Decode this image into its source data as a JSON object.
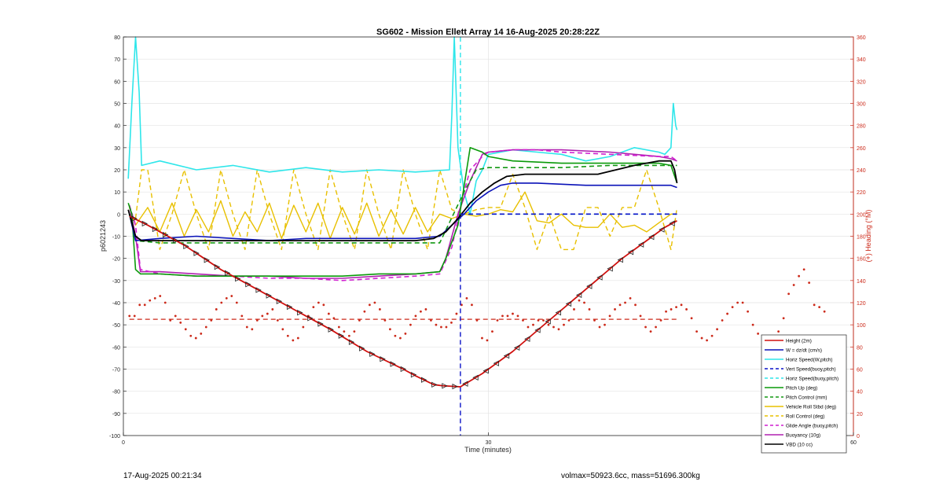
{
  "colors": {
    "height": "#d0100e",
    "w": "#0a12b8",
    "horiz": "#2ee6ea",
    "vert_dash": "#0a12c8",
    "pitch": "#0a9a0a",
    "pitch_ctrl": "#129812",
    "roll": "#e8c000",
    "glide": "#d11fd1",
    "buoy": "#b020b0",
    "vbd": "#000000",
    "heading": "#cc2a1a",
    "right_axis": "#cc2a1a"
  },
  "chart_data": {
    "type": "line",
    "title": "SG602 - Mission Ellett Array 14 16-Aug-2025 20:28:22Z",
    "xlabel": "Time (minutes)",
    "ylabel": "p6021243",
    "y2label": "(+) Heading (°M)",
    "xlim": [
      0,
      60
    ],
    "ylim": [
      -100,
      80
    ],
    "y2lim": [
      0,
      360
    ],
    "xticks": [
      0,
      30,
      60
    ],
    "yticks": [
      80,
      70,
      60,
      50,
      40,
      30,
      20,
      10,
      0,
      -10,
      -20,
      -30,
      -40,
      -50,
      -60,
      -70,
      -80,
      -90,
      -100
    ],
    "y2ticks": [
      360,
      340,
      320,
      300,
      280,
      260,
      240,
      220,
      200,
      180,
      160,
      140,
      120,
      100,
      80,
      60,
      40,
      20,
      0
    ],
    "grid": true,
    "legend_position": "bottom-right",
    "apogee_time": 27.7,
    "series": [
      {
        "key": "height",
        "name": "Height (2m)",
        "style": "solid",
        "x": [
          0.5,
          2,
          5,
          8,
          11,
          14,
          17,
          20,
          23,
          24,
          25.5,
          26.2,
          27.7,
          29.5,
          32,
          35,
          38,
          41,
          43,
          44.5,
          45.5
        ],
        "y": [
          -1,
          -5,
          -14,
          -25,
          -34,
          -43,
          -52,
          -62,
          -70,
          -73,
          -77,
          -77.5,
          -78,
          -72,
          -62,
          -48,
          -34,
          -20,
          -12,
          -6,
          -3
        ]
      },
      {
        "key": "w",
        "name": "W = dz/dt (cm/s)",
        "style": "solid",
        "x": [
          0.5,
          1,
          3,
          6,
          9,
          12,
          15,
          18,
          21,
          24,
          26,
          27,
          28,
          29,
          30,
          31,
          32,
          34,
          38,
          42,
          45,
          45.5
        ],
        "y": [
          0,
          -12,
          -11,
          -10,
          -11,
          -12,
          -11,
          -11,
          -11,
          -11,
          -10,
          -5,
          0,
          6,
          10,
          13,
          14,
          14,
          13,
          13,
          13,
          12
        ]
      },
      {
        "key": "horiz",
        "name": "Horiz Speed(W,pitch)",
        "style": "solid",
        "x": [
          0.4,
          0.7,
          1,
          1.3,
          1.5,
          3,
          6,
          9,
          12,
          15,
          18,
          21,
          24,
          26.8,
          27,
          27.2,
          27.5,
          28,
          28.5,
          29,
          29.5,
          30,
          32,
          34,
          36,
          38,
          40,
          42,
          44,
          44.5,
          45,
          45.2,
          45.4,
          45.5
        ],
        "y": [
          16,
          50,
          80,
          55,
          22,
          24,
          20,
          22,
          19,
          21,
          19,
          20,
          19,
          20,
          45,
          80,
          30,
          10,
          0,
          15,
          20,
          27,
          29,
          28,
          27,
          24,
          26,
          30,
          28,
          27,
          30,
          50,
          40,
          38
        ]
      },
      {
        "key": "vert",
        "name": "Vert Speed(buoy,pitch)",
        "style": "dashed",
        "x": [
          27.7,
          45.5
        ],
        "y": [
          0,
          0
        ]
      },
      {
        "key": "horiz_buoy",
        "name": "Horiz Speed(buoy,pitch)",
        "style": "dashed",
        "x": [
          27.7,
          45.5
        ],
        "y": [
          0,
          0
        ]
      },
      {
        "key": "pitch",
        "name": "Pitch Up (deg)",
        "style": "solid",
        "x": [
          0.4,
          0.7,
          1,
          1.4,
          3,
          6,
          9,
          12,
          15,
          18,
          21,
          24,
          26,
          26.5,
          27.5,
          28.5,
          29.5,
          30,
          32,
          36,
          40,
          44,
          45,
          45.5
        ],
        "y": [
          5,
          0,
          -25,
          -27,
          -27,
          -28,
          -28,
          -28,
          -28,
          -28,
          -27,
          -27,
          -26,
          -20,
          -5,
          30,
          28,
          26,
          24,
          23,
          23,
          23,
          22,
          14
        ]
      },
      {
        "key": "pitch_ctrl",
        "name": "Pitch Control (mm)",
        "style": "dashed",
        "x": [
          0.5,
          1,
          3,
          6,
          9,
          12,
          15,
          18,
          21,
          24,
          26,
          28,
          29,
          30,
          32,
          36,
          40,
          45.5
        ],
        "y": [
          0,
          -12,
          -13,
          -13,
          -13,
          -13,
          -13,
          -13,
          -13,
          -13,
          -13,
          10,
          20,
          21,
          21,
          21,
          22,
          22
        ]
      },
      {
        "key": "roll",
        "name": "Vehicle Roll Stbd (deg)",
        "style": "solid",
        "x": [
          0.5,
          1,
          2,
          3,
          4,
          5,
          6,
          7,
          8,
          9,
          10,
          11,
          12,
          13,
          14,
          15,
          16,
          17,
          18,
          19,
          20,
          21,
          22,
          23,
          24,
          25,
          26,
          27,
          28,
          29,
          30,
          31,
          32,
          33,
          34,
          35,
          36,
          37,
          38,
          39,
          40,
          41,
          42,
          43,
          44,
          45,
          45.5
        ],
        "y": [
          3,
          -5,
          3,
          -8,
          5,
          -10,
          2,
          -8,
          6,
          -10,
          1,
          -8,
          5,
          -11,
          4,
          -8,
          5,
          -11,
          3,
          -9,
          5,
          -10,
          2,
          -9,
          3,
          -8,
          0,
          -2,
          0,
          -1,
          0,
          2,
          1,
          10,
          -3,
          -4,
          0,
          -5,
          -6,
          -6,
          0,
          -6,
          -5,
          -8,
          -4,
          0,
          0
        ]
      },
      {
        "key": "roll_ctrl",
        "name": "Roll Control (deg)",
        "style": "dashed",
        "x": [
          0.5,
          1,
          1.5,
          2,
          3,
          4,
          5,
          6,
          7,
          8,
          9,
          10,
          11,
          12,
          13,
          14,
          15,
          16,
          17,
          18,
          19,
          20,
          21,
          22,
          23,
          24,
          25,
          26,
          27,
          28,
          29,
          30,
          31,
          32,
          33,
          34,
          35,
          36,
          37,
          38,
          39,
          40,
          41,
          42,
          43,
          44,
          45,
          45.5
        ],
        "y": [
          0,
          -2,
          20,
          20,
          -16,
          0,
          20,
          0,
          -16,
          20,
          0,
          -16,
          20,
          0,
          -16,
          20,
          0,
          -16,
          20,
          0,
          -16,
          20,
          0,
          -16,
          20,
          0,
          -16,
          20,
          2,
          0,
          2,
          3,
          3,
          18,
          3,
          -16,
          0,
          -16,
          -16,
          3,
          3,
          -10,
          3,
          3,
          20,
          3,
          -16,
          3
        ]
      },
      {
        "key": "glide",
        "name": "Glide Angle (buoy,pitch)",
        "style": "dashed",
        "x": [
          0.5,
          1,
          1.4,
          3,
          6,
          9,
          12,
          15,
          18,
          21,
          24,
          26,
          27,
          28,
          28.5,
          29.5,
          30,
          32,
          34,
          36,
          40,
          44,
          45,
          45.5
        ],
        "y": [
          4,
          -5,
          -25,
          -27,
          -28,
          -28,
          -29,
          -29,
          -30,
          -29,
          -28,
          -27,
          -15,
          10,
          20,
          26,
          28,
          29,
          29,
          28,
          27,
          26,
          26,
          24
        ]
      },
      {
        "key": "buoy",
        "name": "Buoyancy (10g)",
        "style": "solid",
        "x": [
          0.5,
          1,
          1.4,
          3,
          6,
          9,
          12,
          15,
          18,
          21,
          24,
          26,
          26.5,
          27.5,
          28.5,
          29.5,
          30,
          32,
          34,
          36,
          40,
          44,
          45,
          45.5
        ],
        "y": [
          4,
          -10,
          -26,
          -26,
          -27,
          -28,
          -28,
          -29,
          -29,
          -28,
          -27,
          -26,
          -20,
          0,
          15,
          27,
          28,
          29,
          29,
          29,
          28,
          26,
          25,
          24
        ]
      },
      {
        "key": "vbd",
        "name": "VBD (10 cc)",
        "style": "solid",
        "x": [
          0.4,
          1,
          1.5,
          3,
          6,
          9,
          12,
          15,
          18,
          21,
          24,
          25.5,
          26.5,
          27.5,
          28.5,
          29.5,
          30.5,
          31.5,
          33,
          36,
          39,
          42,
          44,
          45,
          45.3,
          45.5
        ],
        "y": [
          2,
          -10,
          -12,
          -12,
          -12,
          -12,
          -12,
          -12,
          -12,
          -12,
          -12,
          -11,
          -8,
          -2,
          5,
          10,
          14,
          17,
          18,
          18,
          18,
          22,
          24,
          24,
          20,
          14
        ]
      }
    ],
    "heading_mean_deg": 105,
    "heading_points": {
      "x_start": 0.5,
      "x_step": 0.42,
      "y": [
        108,
        108,
        118,
        118,
        122,
        124,
        126,
        120,
        104,
        108,
        102,
        96,
        90,
        88,
        92,
        98,
        104,
        114,
        120,
        124,
        126,
        120,
        108,
        98,
        96,
        104,
        108,
        110,
        114,
        104,
        96,
        90,
        86,
        88,
        98,
        108,
        116,
        120,
        118,
        110,
        106,
        98,
        94,
        90,
        94,
        104,
        112,
        118,
        120,
        114,
        104,
        96,
        90,
        88,
        92,
        100,
        108,
        112,
        114,
        104,
        100,
        98,
        98,
        102,
        110,
        118,
        124,
        118,
        104,
        88,
        86,
        94,
        104,
        108,
        108,
        110,
        108,
        104,
        98,
        100,
        104,
        104,
        100,
        98,
        96,
        100,
        104,
        114,
        122,
        120,
        114,
        104,
        98,
        100,
        108,
        114,
        118,
        120,
        124,
        118,
        108,
        98,
        94,
        98,
        104,
        112,
        114,
        116,
        118,
        114,
        106,
        94,
        88,
        86,
        90,
        96,
        104,
        110,
        116,
        120,
        120,
        112,
        100,
        92,
        86,
        84,
        86,
        94,
        106,
        128,
        136,
        144,
        150,
        138,
        118,
        116,
        112
      ]
    }
  },
  "footer": {
    "left": "17-Aug-2025 00:21:34",
    "right": "volmax=50923.6cc, mass=51696.300kg"
  }
}
